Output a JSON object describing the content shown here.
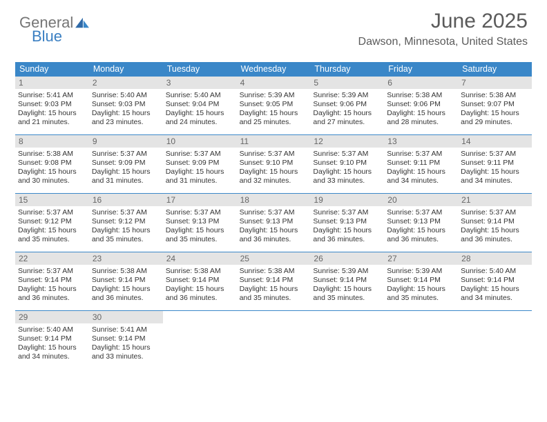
{
  "logo": {
    "part1": "General",
    "part2": "Blue"
  },
  "title": "June 2025",
  "subtitle": "Dawson, Minnesota, United States",
  "colors": {
    "header_bg": "#3a87c8",
    "header_text": "#ffffff",
    "daynum_bg": "#e4e4e4",
    "daynum_text": "#666666",
    "body_text": "#333333",
    "rule": "#3a87c8"
  },
  "day_names": [
    "Sunday",
    "Monday",
    "Tuesday",
    "Wednesday",
    "Thursday",
    "Friday",
    "Saturday"
  ],
  "weeks": [
    [
      {
        "n": "1",
        "sr": "5:41 AM",
        "ss": "9:03 PM",
        "dl": "15 hours and 21 minutes."
      },
      {
        "n": "2",
        "sr": "5:40 AM",
        "ss": "9:03 PM",
        "dl": "15 hours and 23 minutes."
      },
      {
        "n": "3",
        "sr": "5:40 AM",
        "ss": "9:04 PM",
        "dl": "15 hours and 24 minutes."
      },
      {
        "n": "4",
        "sr": "5:39 AM",
        "ss": "9:05 PM",
        "dl": "15 hours and 25 minutes."
      },
      {
        "n": "5",
        "sr": "5:39 AM",
        "ss": "9:06 PM",
        "dl": "15 hours and 27 minutes."
      },
      {
        "n": "6",
        "sr": "5:38 AM",
        "ss": "9:06 PM",
        "dl": "15 hours and 28 minutes."
      },
      {
        "n": "7",
        "sr": "5:38 AM",
        "ss": "9:07 PM",
        "dl": "15 hours and 29 minutes."
      }
    ],
    [
      {
        "n": "8",
        "sr": "5:38 AM",
        "ss": "9:08 PM",
        "dl": "15 hours and 30 minutes."
      },
      {
        "n": "9",
        "sr": "5:37 AM",
        "ss": "9:09 PM",
        "dl": "15 hours and 31 minutes."
      },
      {
        "n": "10",
        "sr": "5:37 AM",
        "ss": "9:09 PM",
        "dl": "15 hours and 31 minutes."
      },
      {
        "n": "11",
        "sr": "5:37 AM",
        "ss": "9:10 PM",
        "dl": "15 hours and 32 minutes."
      },
      {
        "n": "12",
        "sr": "5:37 AM",
        "ss": "9:10 PM",
        "dl": "15 hours and 33 minutes."
      },
      {
        "n": "13",
        "sr": "5:37 AM",
        "ss": "9:11 PM",
        "dl": "15 hours and 34 minutes."
      },
      {
        "n": "14",
        "sr": "5:37 AM",
        "ss": "9:11 PM",
        "dl": "15 hours and 34 minutes."
      }
    ],
    [
      {
        "n": "15",
        "sr": "5:37 AM",
        "ss": "9:12 PM",
        "dl": "15 hours and 35 minutes."
      },
      {
        "n": "16",
        "sr": "5:37 AM",
        "ss": "9:12 PM",
        "dl": "15 hours and 35 minutes."
      },
      {
        "n": "17",
        "sr": "5:37 AM",
        "ss": "9:13 PM",
        "dl": "15 hours and 35 minutes."
      },
      {
        "n": "18",
        "sr": "5:37 AM",
        "ss": "9:13 PM",
        "dl": "15 hours and 36 minutes."
      },
      {
        "n": "19",
        "sr": "5:37 AM",
        "ss": "9:13 PM",
        "dl": "15 hours and 36 minutes."
      },
      {
        "n": "20",
        "sr": "5:37 AM",
        "ss": "9:13 PM",
        "dl": "15 hours and 36 minutes."
      },
      {
        "n": "21",
        "sr": "5:37 AM",
        "ss": "9:14 PM",
        "dl": "15 hours and 36 minutes."
      }
    ],
    [
      {
        "n": "22",
        "sr": "5:37 AM",
        "ss": "9:14 PM",
        "dl": "15 hours and 36 minutes."
      },
      {
        "n": "23",
        "sr": "5:38 AM",
        "ss": "9:14 PM",
        "dl": "15 hours and 36 minutes."
      },
      {
        "n": "24",
        "sr": "5:38 AM",
        "ss": "9:14 PM",
        "dl": "15 hours and 36 minutes."
      },
      {
        "n": "25",
        "sr": "5:38 AM",
        "ss": "9:14 PM",
        "dl": "15 hours and 35 minutes."
      },
      {
        "n": "26",
        "sr": "5:39 AM",
        "ss": "9:14 PM",
        "dl": "15 hours and 35 minutes."
      },
      {
        "n": "27",
        "sr": "5:39 AM",
        "ss": "9:14 PM",
        "dl": "15 hours and 35 minutes."
      },
      {
        "n": "28",
        "sr": "5:40 AM",
        "ss": "9:14 PM",
        "dl": "15 hours and 34 minutes."
      }
    ],
    [
      {
        "n": "29",
        "sr": "5:40 AM",
        "ss": "9:14 PM",
        "dl": "15 hours and 34 minutes."
      },
      {
        "n": "30",
        "sr": "5:41 AM",
        "ss": "9:14 PM",
        "dl": "15 hours and 33 minutes."
      },
      null,
      null,
      null,
      null,
      null
    ]
  ],
  "labels": {
    "sunrise": "Sunrise: ",
    "sunset": "Sunset: ",
    "daylight": "Daylight: "
  }
}
